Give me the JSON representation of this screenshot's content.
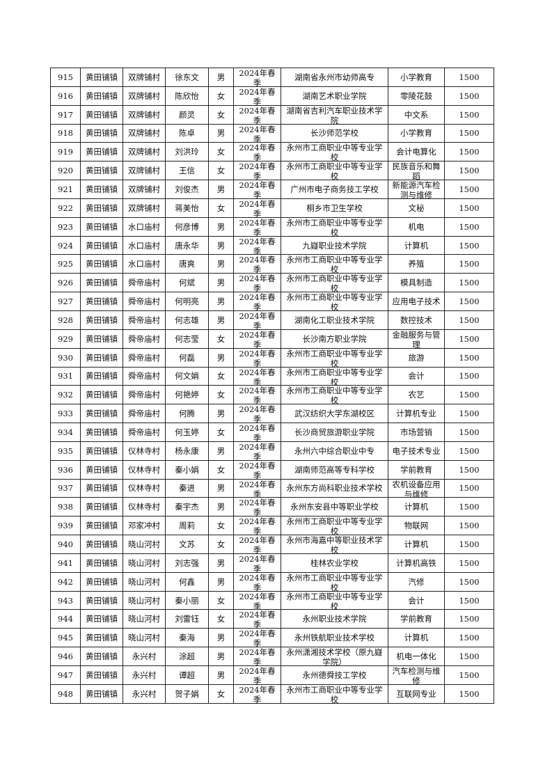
{
  "table": {
    "rows": [
      [
        "915",
        "黄田铺镇",
        "双牌铺村",
        "徐东文",
        "男",
        "2024年春季",
        "湖南省永州市幼师高专",
        "小学教育",
        "1500"
      ],
      [
        "916",
        "黄田铺镇",
        "双牌铺村",
        "陈欣怡",
        "女",
        "2024年春季",
        "湖南艺术职业学院",
        "零陵花鼓",
        "1500"
      ],
      [
        "917",
        "黄田铺镇",
        "双牌铺村",
        "颜灵",
        "女",
        "2024年春季",
        "湖南省吉利汽车职业技术学院",
        "中文系",
        "1500"
      ],
      [
        "918",
        "黄田铺镇",
        "双牌铺村",
        "陈卓",
        "男",
        "2024年春季",
        "长沙师范学校",
        "小学教育",
        "1500"
      ],
      [
        "919",
        "黄田铺镇",
        "双牌铺村",
        "刘洪玲",
        "女",
        "2024年春季",
        "永州市工商职业中等专业学校",
        "会计电算化",
        "1500"
      ],
      [
        "920",
        "黄田铺镇",
        "双牌铺村",
        "王信",
        "女",
        "2024年春季",
        "永州市工商职业中等专业学校",
        "民族音乐和舞蹈",
        "1500"
      ],
      [
        "921",
        "黄田铺镇",
        "双牌铺村",
        "刘俊杰",
        "男",
        "2024年春季",
        "广州市电子商务技工学校",
        "新能源汽车检测与维修",
        "1500"
      ],
      [
        "922",
        "黄田铺镇",
        "双牌铺村",
        "蒋美怡",
        "女",
        "2024年春季",
        "桐乡市卫生学校",
        "文秘",
        "1500"
      ],
      [
        "923",
        "黄田铺镇",
        "水口庙村",
        "何彦博",
        "男",
        "2024年春季",
        "永州市工商职业中等专业学校",
        "机电",
        "1500"
      ],
      [
        "924",
        "黄田铺镇",
        "水口庙村",
        "唐永华",
        "男",
        "2024年春季",
        "九嶷职业技术学院",
        "计算机",
        "1500"
      ],
      [
        "925",
        "黄田铺镇",
        "水口庙村",
        "唐爽",
        "男",
        "2024年春季",
        "永州市工商职业中等专业学校",
        "养殖",
        "1500"
      ],
      [
        "926",
        "黄田铺镇",
        "舜帝庙村",
        "何斌",
        "男",
        "2024年春季",
        "永州市工商职业中等专业学校",
        "模具制造",
        "1500"
      ],
      [
        "927",
        "黄田铺镇",
        "舜帝庙村",
        "何明亮",
        "男",
        "2024年春季",
        "永州市工商职业中等专业学校",
        "应用电子技术",
        "1500"
      ],
      [
        "928",
        "黄田铺镇",
        "舜帝庙村",
        "何志雄",
        "男",
        "2024年春季",
        "湖南化工职业技术学院",
        "数控技术",
        "1500"
      ],
      [
        "929",
        "黄田铺镇",
        "舜帝庙村",
        "何志莹",
        "女",
        "2024年春季",
        "长沙南方职业学院",
        "金融服务与管理",
        "1500"
      ],
      [
        "930",
        "黄田铺镇",
        "舜帝庙村",
        "何磊",
        "男",
        "2024年春季",
        "永州市工商职业中等专业学校",
        "旅游",
        "1500"
      ],
      [
        "931",
        "黄田铺镇",
        "舜帝庙村",
        "何文娟",
        "女",
        "2024年春季",
        "永州市工商职业中等专业学校",
        "会计",
        "1500"
      ],
      [
        "932",
        "黄田铺镇",
        "舜帝庙村",
        "何艳婷",
        "女",
        "2024年春季",
        "永州市工商职业中等专业学校",
        "农艺",
        "1500"
      ],
      [
        "933",
        "黄田铺镇",
        "舜帝庙村",
        "何腾",
        "男",
        "2024年春季",
        "武汉纺织大学东湖校区",
        "计算机专业",
        "1500"
      ],
      [
        "934",
        "黄田铺镇",
        "舜帝庙村",
        "何玉婷",
        "女",
        "2024年春季",
        "长沙商贸旅游职业学院",
        "市场营销",
        "1500"
      ],
      [
        "935",
        "黄田铺镇",
        "仪林寺村",
        "杨永康",
        "男",
        "2024年春季",
        "永州六中综合职业中专",
        "电子技术专业",
        "1500"
      ],
      [
        "936",
        "黄田铺镇",
        "仪林寺村",
        "秦小娟",
        "女",
        "2024年春季",
        "湖南师范高等专科学校",
        "学前教育",
        "1500"
      ],
      [
        "937",
        "黄田铺镇",
        "仪林寺村",
        "秦进",
        "男",
        "2024年春季",
        "永州东方尚科职业技术学校",
        "农机设备应用与维修",
        "1500"
      ],
      [
        "938",
        "黄田铺镇",
        "仪林寺村",
        "秦宇杰",
        "男",
        "2024年春季",
        "永州东安县中等职业学校",
        "计算机",
        "1500"
      ],
      [
        "939",
        "黄田铺镇",
        "邓家冲村",
        "周莉",
        "女",
        "2024年春季",
        "永州市工商职业中等专业学校",
        "物联网",
        "1500"
      ],
      [
        "940",
        "黄田铺镇",
        "晓山河村",
        "文苏",
        "女",
        "2024年春季",
        "永州市海嘉中等职业技术学校",
        "计算机",
        "1500"
      ],
      [
        "941",
        "黄田铺镇",
        "晓山河村",
        "刘志强",
        "男",
        "2024年春季",
        "桂林农业学校",
        "计算机高铁",
        "1500"
      ],
      [
        "942",
        "黄田铺镇",
        "晓山河村",
        "何鑫",
        "男",
        "2024年春季",
        "永州市工商职业中等专业学校",
        "汽修",
        "1500"
      ],
      [
        "943",
        "黄田铺镇",
        "晓山河村",
        "秦小丽",
        "女",
        "2024年春季",
        "永州市工商职业中等专业学校",
        "会计",
        "1500"
      ],
      [
        "944",
        "黄田铺镇",
        "晓山河村",
        "刘雷钰",
        "女",
        "2024年春季",
        "永州职业技术学院",
        "学前教育",
        "1500"
      ],
      [
        "945",
        "黄田铺镇",
        "晓山河村",
        "秦海",
        "男",
        "2024年春季",
        "永州铁航职业技术学校",
        "计算机",
        "1500"
      ],
      [
        "946",
        "黄田铺镇",
        "永兴村",
        "涂超",
        "男",
        "2024年春季",
        "永州潇湘技术学校（原九嶷学院）",
        "机电一体化",
        "1500"
      ],
      [
        "947",
        "黄田铺镇",
        "永兴村",
        "谭超",
        "男",
        "2024年春季",
        "永州德舜技工学校",
        "汽车检测与维修",
        "1500"
      ],
      [
        "948",
        "黄田铺镇",
        "永兴村",
        "贺子娟",
        "女",
        "2024年春季",
        "永州市工商职业中等专业学校",
        "互联网专业",
        "1500"
      ]
    ]
  }
}
